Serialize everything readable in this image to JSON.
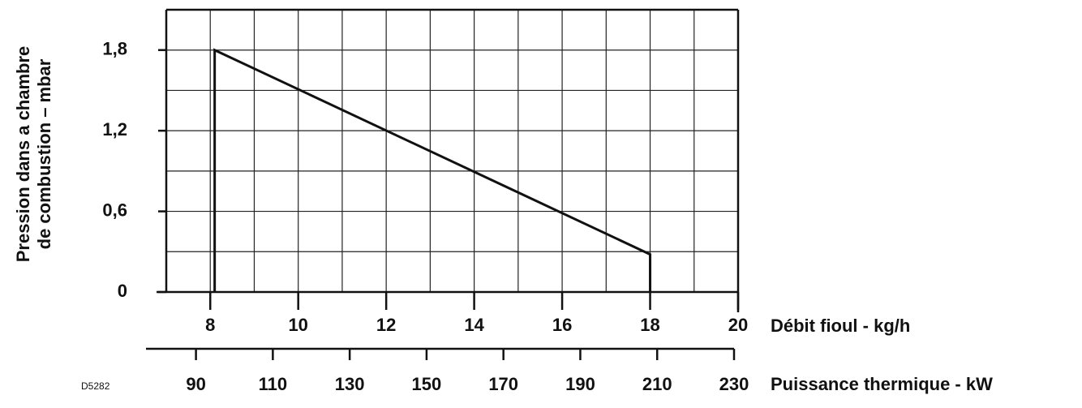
{
  "chart_data": {
    "type": "line",
    "y_label_lines": [
      "Pression dans  a chambre",
      "de combustion – mbar"
    ],
    "x_label": "Débit fioul - kg/h",
    "x2_label": "Puissance thermique - kW",
    "code": "D5282",
    "series": [
      {
        "color": "#111111",
        "x": [
          8.1,
          8.1,
          18,
          18
        ],
        "values": [
          0,
          1.8,
          0.28,
          0
        ]
      }
    ],
    "xlim": [
      7,
      20
    ],
    "xticks": [
      8,
      10,
      12,
      14,
      16,
      18,
      20
    ],
    "x_grid_step": 1,
    "ylim": [
      0,
      2.1
    ],
    "yticks": [
      {
        "value": 0,
        "label": "0"
      },
      {
        "value": 0.6,
        "label": "0,6"
      },
      {
        "value": 1.2,
        "label": "1,2"
      },
      {
        "value": 1.8,
        "label": "1,8"
      }
    ],
    "y_grid_step": 0.3,
    "x2lim": [
      77,
      230
    ],
    "x2ticks": [
      90,
      110,
      130,
      150,
      170,
      190,
      210,
      230
    ],
    "grid": true
  }
}
